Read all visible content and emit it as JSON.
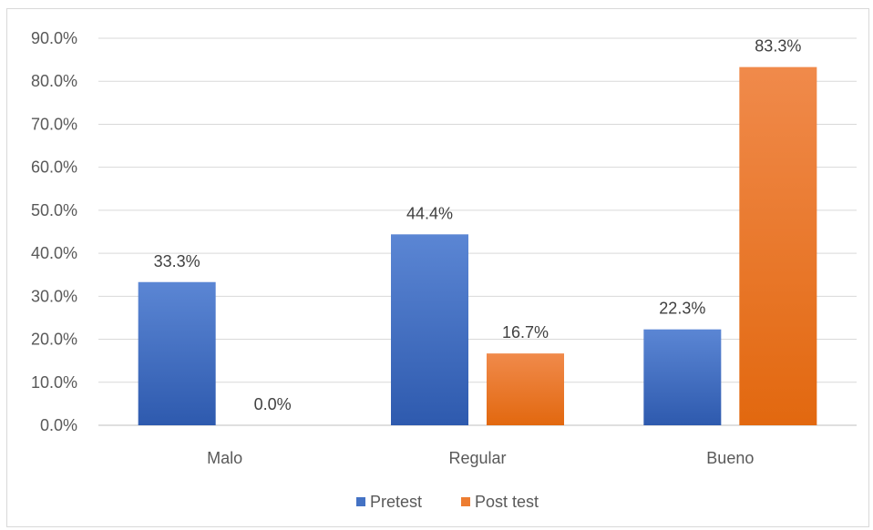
{
  "chart_data": {
    "type": "bar",
    "categories": [
      "Malo",
      "Regular",
      "Bueno"
    ],
    "series": [
      {
        "name": "Pretest",
        "values": [
          33.3,
          44.4,
          22.3
        ],
        "labels": [
          "33.3%",
          "44.4%",
          "22.3%"
        ],
        "color": "#4472C4"
      },
      {
        "name": "Post test",
        "values": [
          0.0,
          16.7,
          83.3
        ],
        "labels": [
          "0.0%",
          "16.7%",
          "83.3%"
        ],
        "color": "#ED7D31"
      }
    ],
    "y_ticks": [
      "0.0%",
      "10.0%",
      "20.0%",
      "30.0%",
      "40.0%",
      "50.0%",
      "60.0%",
      "70.0%",
      "80.0%",
      "90.0%"
    ],
    "ylim": [
      0,
      90
    ],
    "grid": true,
    "legend_position": "bottom",
    "title": "",
    "xlabel": "",
    "ylabel": ""
  }
}
